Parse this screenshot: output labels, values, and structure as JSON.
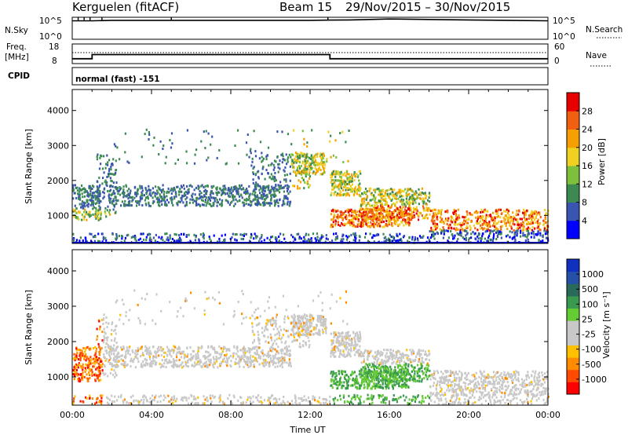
{
  "header": {
    "station": "Kerguelen (fitACF)",
    "beam": "Beam 15",
    "date_range": "29/Nov/2015 – 30/Nov/2015"
  },
  "colors": {
    "line": "#000000",
    "dotted": "#000000",
    "bottom_band": "#0000cc"
  },
  "chart_data": [
    {
      "type": "line",
      "name": "nsky-nsearch",
      "ylabel_left": "N.Sky",
      "ylabel_right": "N.Search",
      "yticks_left": [
        "10^5",
        "10^0"
      ],
      "yticks_right": [
        "10^5",
        "10^0"
      ],
      "scale": "log",
      "x_hours": [
        0,
        1,
        2,
        4,
        6,
        8,
        10,
        12,
        13,
        14,
        16,
        18,
        20,
        22,
        24
      ],
      "nsky_log": [
        4.2,
        4.2,
        4.3,
        4.3,
        4.3,
        4.3,
        4.3,
        4.3,
        4.35,
        4.4,
        4.6,
        4.5,
        4.4,
        4.3,
        4.2
      ],
      "spikes_hours": [
        0.3,
        0.6,
        0.9,
        1.5,
        5.0,
        12.9
      ]
    },
    {
      "type": "line",
      "name": "freq-nave",
      "ylabel_left": "Freq. [MHz]",
      "ylabel_right": "Nave",
      "yticks_left": [
        "18",
        "8"
      ],
      "yticks_right": [
        "60",
        "0"
      ],
      "freq_mhz_steps": [
        [
          0,
          10.5
        ],
        [
          1.0,
          12.6
        ],
        [
          13.0,
          10.5
        ],
        [
          24,
          10.5
        ]
      ],
      "nave_dotted_mhz": 13.6
    },
    {
      "type": "table",
      "name": "cpid",
      "label": "CPID",
      "value": "normal (fast) -151"
    },
    {
      "type": "heatmap",
      "name": "power",
      "ylabel": "Slant Range [km]",
      "xlabel": "",
      "yticks": [
        1000,
        2000,
        3000,
        4000
      ],
      "ylim": [
        200,
        4600
      ],
      "xlim_hours": [
        0,
        24
      ],
      "colorbar": {
        "label": "Power [dB]",
        "ticks": [
          "28",
          "24",
          "20",
          "16",
          "12",
          "8",
          "4"
        ],
        "range": [
          0,
          30
        ],
        "colors": [
          "#0000ff",
          "#3a55b0",
          "#3c8a52",
          "#7cc03c",
          "#f0d020",
          "#f5a000",
          "#f06010",
          "#e80000"
        ]
      }
    },
    {
      "type": "heatmap",
      "name": "velocity",
      "ylabel": "Slant Range [km]",
      "xlabel": "Time UT",
      "xticks": [
        "00:00",
        "04:00",
        "08:00",
        "12:00",
        "16:00",
        "20:00",
        "00:00"
      ],
      "yticks": [
        1000,
        2000,
        3000,
        4000
      ],
      "ylim": [
        200,
        4600
      ],
      "xlim_hours": [
        0,
        24
      ],
      "colorbar": {
        "label": "Velocity [m s⁻¹]",
        "ticks": [
          "1000",
          "500",
          "100",
          "25",
          "-25",
          "-100",
          "-500",
          "-1000"
        ],
        "range": [
          -1000,
          1000
        ],
        "colors": [
          "#ff0000",
          "#ff4a00",
          "#ff8c00",
          "#ffc000",
          "#c8c8c8",
          "#c8c8c8",
          "#66cc33",
          "#3a9a50",
          "#2a6a5a",
          "#2450a8",
          "#1030c0"
        ]
      }
    }
  ]
}
